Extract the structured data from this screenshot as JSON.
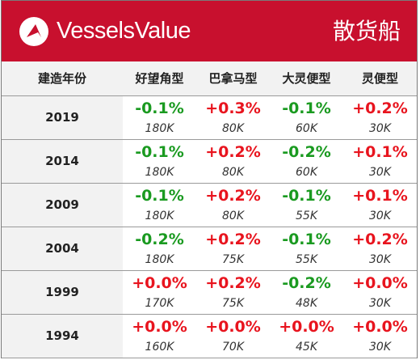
{
  "header": {
    "brand": "VesselsValue",
    "category": "散货船",
    "colors": {
      "background": "#c8102e",
      "text": "#ffffff"
    }
  },
  "columns": [
    "建造年份",
    "好望角型",
    "巴拿马型",
    "大灵便型",
    "灵便型"
  ],
  "colors": {
    "positive": "#e8141e",
    "negative": "#1a9a20"
  },
  "rows": [
    {
      "year": "2019",
      "cells": [
        {
          "change": "-0.1%",
          "dwt": "180K"
        },
        {
          "change": "+0.3%",
          "dwt": "80K"
        },
        {
          "change": "-0.1%",
          "dwt": "60K"
        },
        {
          "change": "+0.2%",
          "dwt": "30K"
        }
      ]
    },
    {
      "year": "2014",
      "cells": [
        {
          "change": "-0.1%",
          "dwt": "180K"
        },
        {
          "change": "+0.2%",
          "dwt": "80K"
        },
        {
          "change": "-0.2%",
          "dwt": "60K"
        },
        {
          "change": "+0.1%",
          "dwt": "30K"
        }
      ]
    },
    {
      "year": "2009",
      "cells": [
        {
          "change": "-0.1%",
          "dwt": "180K"
        },
        {
          "change": "+0.2%",
          "dwt": "80K"
        },
        {
          "change": "-0.1%",
          "dwt": "55K"
        },
        {
          "change": "+0.1%",
          "dwt": "30K"
        }
      ]
    },
    {
      "year": "2004",
      "cells": [
        {
          "change": "-0.2%",
          "dwt": "180K"
        },
        {
          "change": "+0.2%",
          "dwt": "75K"
        },
        {
          "change": "-0.1%",
          "dwt": "55K"
        },
        {
          "change": "+0.2%",
          "dwt": "30K"
        }
      ]
    },
    {
      "year": "1999",
      "cells": [
        {
          "change": "+0.0%",
          "dwt": "170K"
        },
        {
          "change": "+0.2%",
          "dwt": "75K"
        },
        {
          "change": "-0.2%",
          "dwt": "48K"
        },
        {
          "change": "+0.0%",
          "dwt": "30K"
        }
      ]
    },
    {
      "year": "1994",
      "cells": [
        {
          "change": "+0.0%",
          "dwt": "160K"
        },
        {
          "change": "+0.0%",
          "dwt": "70K"
        },
        {
          "change": "+0.0%",
          "dwt": "45K"
        },
        {
          "change": "+0.0%",
          "dwt": "30K"
        }
      ]
    }
  ]
}
